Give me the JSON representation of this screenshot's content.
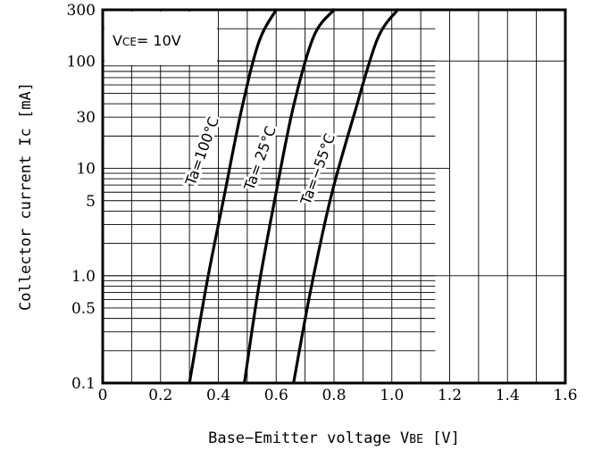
{
  "chart_data": {
    "type": "line",
    "title": "",
    "xlabel": "Base−Emitter voltage V",
    "xlabel_sub": "BE",
    "xlabel_unit": "[V]",
    "ylabel": "Collector current Ic [mA]",
    "xlim": [
      0,
      1.6
    ],
    "ylim": [
      0.1,
      300
    ],
    "y_scale": "log",
    "grid": true,
    "x_ticks": [
      {
        "value": 0,
        "label": "0"
      },
      {
        "value": 0.2,
        "label": "0.2"
      },
      {
        "value": 0.4,
        "label": "0.4"
      },
      {
        "value": 0.6,
        "label": "0.6"
      },
      {
        "value": 0.8,
        "label": "0.8"
      },
      {
        "value": 1.0,
        "label": "1.0"
      },
      {
        "value": 1.2,
        "label": "1.2"
      },
      {
        "value": 1.4,
        "label": "1.4"
      },
      {
        "value": 1.6,
        "label": "1.6"
      }
    ],
    "y_ticks": [
      {
        "value": 0.1,
        "label": "0.1"
      },
      {
        "value": 0.5,
        "label": "0.5"
      },
      {
        "value": 1.0,
        "label": "1.0"
      },
      {
        "value": 5,
        "label": "5"
      },
      {
        "value": 10,
        "label": "10"
      },
      {
        "value": 30,
        "label": "30"
      },
      {
        "value": 100,
        "label": "100"
      },
      {
        "value": 300,
        "label": "300"
      }
    ],
    "annotation": {
      "prefix": "V",
      "sub": "CE",
      "text": "= 10V"
    },
    "series": [
      {
        "name": "Ta=100°C",
        "x": [
          0.3,
          0.36,
          0.42,
          0.48,
          0.54,
          0.6
        ],
        "y": [
          0.1,
          0.85,
          5.5,
          35,
          150,
          300
        ]
      },
      {
        "name": "Ta=  25°C",
        "x": [
          0.49,
          0.54,
          0.6,
          0.66,
          0.73,
          0.8
        ],
        "y": [
          0.1,
          0.8,
          6,
          38,
          170,
          300
        ]
      },
      {
        "name": "Ta=−55°C",
        "x": [
          0.66,
          0.72,
          0.79,
          0.87,
          0.95,
          1.02
        ],
        "y": [
          0.1,
          0.75,
          5.5,
          32,
          160,
          300
        ]
      }
    ]
  }
}
